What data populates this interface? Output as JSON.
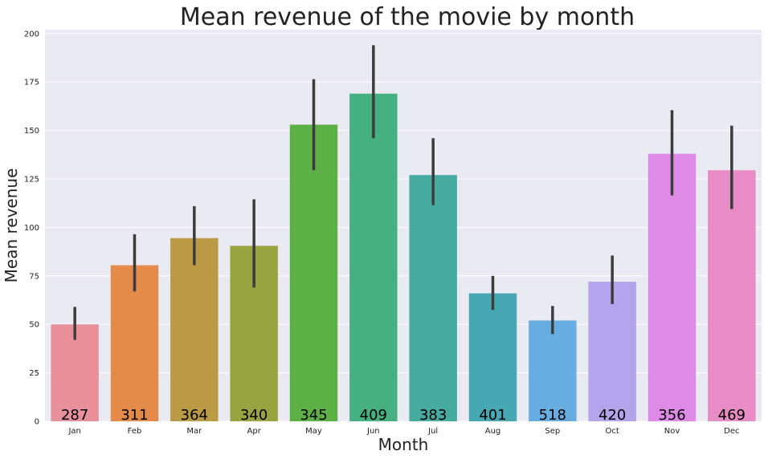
{
  "chart_data": {
    "type": "bar",
    "title": "Mean revenue of the movie by month",
    "xlabel": "Month",
    "ylabel": "Mean revenue",
    "categories": [
      "Jan",
      "Feb",
      "Mar",
      "Apr",
      "May",
      "Jun",
      "Jul",
      "Aug",
      "Sep",
      "Oct",
      "Nov",
      "Dec"
    ],
    "values": [
      50,
      80.5,
      94.5,
      90.5,
      153,
      169,
      127,
      66,
      52,
      72,
      138,
      129.5
    ],
    "error_low": [
      42,
      67,
      80.5,
      69,
      129.5,
      146,
      111.5,
      57.5,
      45,
      60.5,
      116.5,
      109.5
    ],
    "error_high": [
      59,
      96.5,
      111,
      114.5,
      176.5,
      194,
      146,
      75,
      59.5,
      85.5,
      160.5,
      152.5
    ],
    "counts": [
      "287",
      "311",
      "364",
      "340",
      "345",
      "409",
      "383",
      "401",
      "518",
      "420",
      "356",
      "469"
    ],
    "colors": [
      "#e8919c",
      "#e48b4b",
      "#bb9a45",
      "#98a341",
      "#5cb046",
      "#47b080",
      "#48aba0",
      "#47a7b2",
      "#68ade1",
      "#b4a4ec",
      "#de8be8",
      "#e78cc4"
    ],
    "ylim": [
      0,
      202
    ],
    "yticks": [
      0,
      25,
      50,
      75,
      100,
      125,
      150,
      175,
      200
    ],
    "grid": true,
    "background": "#eaeaf2"
  }
}
